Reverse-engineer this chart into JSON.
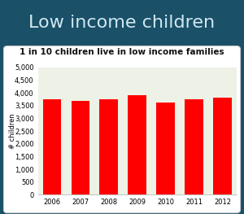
{
  "title": "Low income children",
  "subtitle": "1 in 10 children live in low income families",
  "years": [
    2006,
    2007,
    2008,
    2009,
    2010,
    2011,
    2012
  ],
  "values": [
    3750,
    3680,
    3740,
    3900,
    3620,
    3760,
    3800
  ],
  "bar_color": "#ff0000",
  "background_outer": "#1a5068",
  "plot_bg": "#eef2e6",
  "title_color": "#d0e8f0",
  "subtitle_color": "#111111",
  "ylabel": "# children",
  "ylim": [
    0,
    5000
  ],
  "yticks": [
    0,
    500,
    1000,
    1500,
    2000,
    2500,
    3000,
    3500,
    4000,
    4500,
    5000
  ],
  "title_fontsize": 16,
  "subtitle_fontsize": 7.5,
  "tick_fontsize": 6.0,
  "ylabel_fontsize": 6.0
}
